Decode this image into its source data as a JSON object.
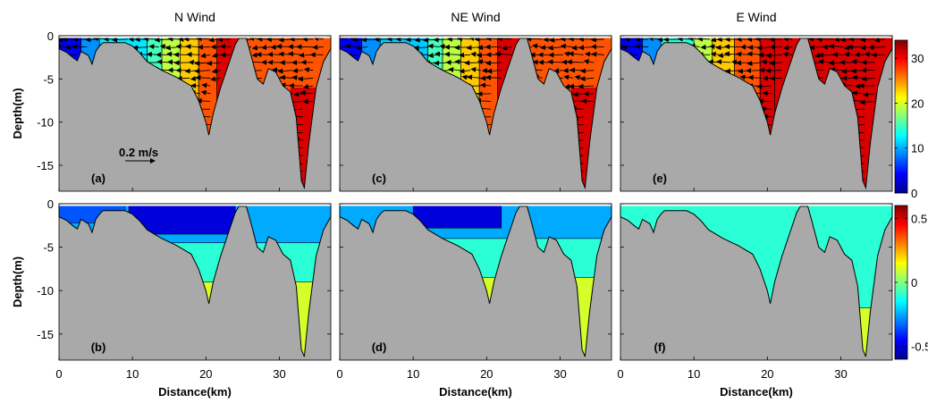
{
  "chart_data": {
    "type": "heatmap",
    "layout": "2x3 contour sections",
    "column_titles": [
      "N Wind",
      "NE Wind",
      "E Wind"
    ],
    "panel_labels": [
      [
        "(a)",
        "(c)",
        "(e)"
      ],
      [
        "(b)",
        "(d)",
        "(f)"
      ]
    ],
    "xlabel": "Distance(km)",
    "ylabel": "Depth(m)",
    "xlim": [
      0,
      37
    ],
    "xticks": [
      "0",
      "10",
      "20",
      "30"
    ],
    "xtick_values": [
      0,
      10,
      20,
      30
    ],
    "ylim": [
      -18,
      0
    ],
    "yticks": [
      "0",
      "-5",
      "-10",
      "-15"
    ],
    "ytick_values": [
      0,
      -5,
      -10,
      -15
    ],
    "scale_vector_label": "0.2 m/s",
    "scale_vector_ms": 0.2,
    "bottom_profile_km_depth": [
      [
        0,
        -1.5
      ],
      [
        1,
        -1.9
      ],
      [
        2,
        -2.6
      ],
      [
        2.5,
        -2.9
      ],
      [
        3,
        -1.8
      ],
      [
        4,
        -2.3
      ],
      [
        4.5,
        -3.3
      ],
      [
        5,
        -1.8
      ],
      [
        5.5,
        -1.2
      ],
      [
        6,
        -0.8
      ],
      [
        9,
        -0.8
      ],
      [
        10,
        -1.2
      ],
      [
        11,
        -2.0
      ],
      [
        12,
        -3.0
      ],
      [
        14,
        -4.0
      ],
      [
        16,
        -4.8
      ],
      [
        18,
        -5.8
      ],
      [
        19,
        -7.5
      ],
      [
        20,
        -10
      ],
      [
        20.4,
        -11.5
      ],
      [
        21,
        -9.0
      ],
      [
        22,
        -6.0
      ],
      [
        23,
        -3.5
      ],
      [
        24,
        -1.0
      ],
      [
        24.5,
        -0.3
      ],
      [
        25.5,
        -0.3
      ],
      [
        26,
        -1.8
      ],
      [
        27,
        -5.0
      ],
      [
        27.8,
        -5.6
      ],
      [
        28.5,
        -3.8
      ],
      [
        29.5,
        -4.2
      ],
      [
        30.5,
        -5.8
      ],
      [
        31.5,
        -6.5
      ],
      [
        32.3,
        -9.5
      ],
      [
        33,
        -16.8
      ],
      [
        33.4,
        -17.6
      ],
      [
        34,
        -12.5
      ],
      [
        35,
        -6.0
      ],
      [
        36,
        -3.0
      ],
      [
        37,
        -1.5
      ]
    ],
    "top_row": {
      "variable": "salinity",
      "colorbar_ticks": [
        "0",
        "10",
        "20",
        "30"
      ],
      "colorbar_values": [
        0,
        10,
        20,
        30
      ],
      "clim": [
        0,
        34
      ],
      "colormap": [
        "#00008f",
        "#0000ff",
        "#0080ff",
        "#00ffff",
        "#80ff80",
        "#ffff00",
        "#ff8000",
        "#ff0000",
        "#800000"
      ],
      "panels": [
        {
          "boundaries_km": [
            0,
            3,
            5.5,
            12,
            14,
            16.5,
            19,
            21.5,
            25.5,
            37
          ],
          "values": [
            4,
            9,
            12,
            15,
            19,
            23,
            27,
            31,
            27,
            31
          ],
          "deep_channel_value": 31
        },
        {
          "boundaries_km": [
            0,
            3,
            5.5,
            12,
            14,
            16.5,
            19,
            21.5,
            25.5,
            37
          ],
          "values": [
            4,
            9,
            11,
            15,
            19,
            23,
            27,
            31,
            27,
            31
          ],
          "deep_channel_value": 31
        },
        {
          "boundaries_km": [
            0,
            3,
            5.5,
            10,
            12.5,
            15.5,
            19,
            21,
            25.5,
            37
          ],
          "values": [
            4,
            9,
            14,
            19,
            23,
            27,
            31,
            31,
            31,
            31
          ],
          "deep_channel_value": 31
        }
      ]
    },
    "bottom_row": {
      "variable": "velocity",
      "colorbar_ticks": [
        "0.5",
        "0",
        "-0.5"
      ],
      "colorbar_values": [
        0.5,
        0,
        -0.5
      ],
      "clim": [
        -0.6,
        0.6
      ],
      "colormap": [
        "#00008f",
        "#0000ff",
        "#0080ff",
        "#00ffff",
        "#80ff80",
        "#ffff00",
        "#ff8000",
        "#ff0000",
        "#800000"
      ],
      "panels": [
        {
          "layers": [
            {
              "value": -0.5,
              "km": [
                9.5,
                24
              ],
              "bottom": -3.5
            },
            {
              "value": -0.35,
              "km": [
                0,
                9
              ],
              "bottom": -2.2
            },
            {
              "value": -0.25,
              "km": [
                0,
                37
              ],
              "bottom": -4.5
            },
            {
              "value": -0.1,
              "km": [
                0,
                37
              ],
              "bottom": -9
            },
            {
              "value": 0.1,
              "km": [
                0,
                37
              ],
              "bottom": -18
            }
          ]
        },
        {
          "layers": [
            {
              "value": -0.5,
              "km": [
                10,
                22
              ],
              "bottom": -2.8
            },
            {
              "value": -0.25,
              "km": [
                0,
                37
              ],
              "bottom": -4.0
            },
            {
              "value": -0.1,
              "km": [
                0,
                37
              ],
              "bottom": -8.5
            },
            {
              "value": 0.1,
              "km": [
                0,
                37
              ],
              "bottom": -18
            }
          ]
        },
        {
          "layers": [
            {
              "value": -0.1,
              "km": [
                0,
                37
              ],
              "bottom": -12
            },
            {
              "value": 0.1,
              "km": [
                26,
                37
              ],
              "bottom": -18
            }
          ]
        }
      ]
    }
  }
}
